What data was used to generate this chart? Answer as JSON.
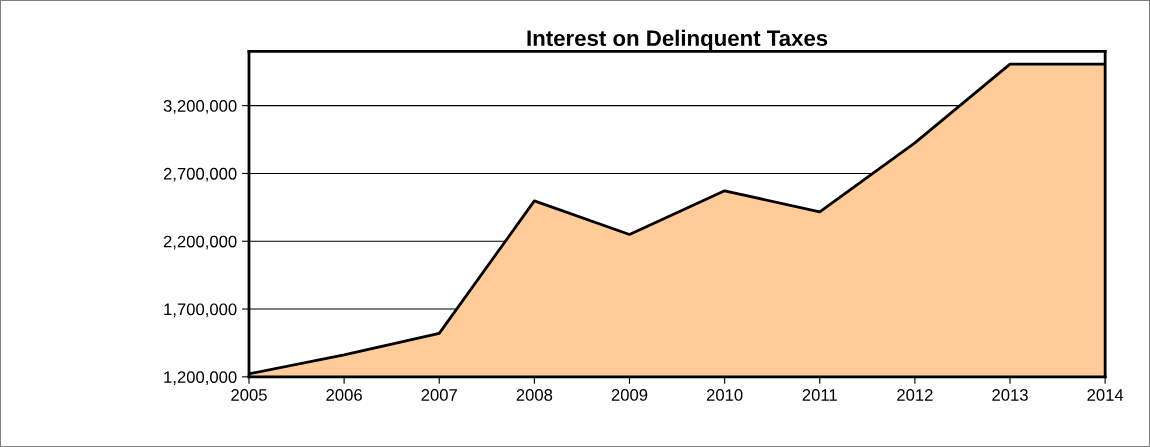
{
  "chart_data": {
    "type": "area",
    "title": "Interest on Delinquent Taxes",
    "categories": [
      "2005",
      "2006",
      "2007",
      "2008",
      "2009",
      "2010",
      "2011",
      "2012",
      "2013",
      "2014"
    ],
    "series": [
      {
        "color": "#ffcc99",
        "values": [
          1222000,
          1362000,
          1520000,
          2498000,
          2250000,
          2572000,
          2417000,
          2925000,
          3506000,
          3506000
        ]
      }
    ],
    "ylim": [
      1200000,
      3600000
    ],
    "yticks": [
      {
        "value": 1200000,
        "label": "1,200,000"
      },
      {
        "value": 1700000,
        "label": "1,700,000"
      },
      {
        "value": 2200000,
        "label": "2,200,000"
      },
      {
        "value": 2700000,
        "label": "2,700,000"
      },
      {
        "value": 3200000,
        "label": "3,200,000"
      }
    ],
    "grid": "y",
    "legend": false
  }
}
